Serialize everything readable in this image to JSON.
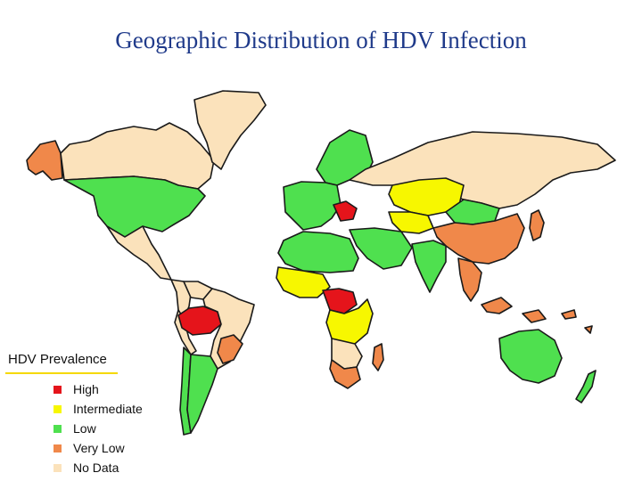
{
  "title": "Geographic Distribution of HDV Infection",
  "legend": {
    "title": "HDV Prevalence",
    "items": [
      {
        "key": "high",
        "label": "High",
        "color": "#e5141b"
      },
      {
        "key": "intermediate",
        "label": "Intermediate",
        "color": "#f7f700"
      },
      {
        "key": "low",
        "label": "Low",
        "color": "#4fe04f"
      },
      {
        "key": "very_low",
        "label": "Very Low",
        "color": "#f0884a"
      },
      {
        "key": "no_data",
        "label": "No Data",
        "color": "#fbe2bb"
      }
    ]
  },
  "regions": [
    {
      "name": "Alaska",
      "category": "very_low"
    },
    {
      "name": "Canada",
      "category": "no_data"
    },
    {
      "name": "Greenland",
      "category": "no_data"
    },
    {
      "name": "United States",
      "category": "low"
    },
    {
      "name": "Mexico",
      "category": "no_data"
    },
    {
      "name": "Colombia",
      "category": "no_data"
    },
    {
      "name": "Venezuela",
      "category": "no_data"
    },
    {
      "name": "Peru",
      "category": "no_data"
    },
    {
      "name": "Western Amazon Basin",
      "category": "high"
    },
    {
      "name": "Brazil",
      "category": "no_data"
    },
    {
      "name": "Eastern Brazil",
      "category": "very_low"
    },
    {
      "name": "Chile",
      "category": "low"
    },
    {
      "name": "Argentina",
      "category": "low"
    },
    {
      "name": "Northern Europe",
      "category": "low"
    },
    {
      "name": "Western Europe",
      "category": "low"
    },
    {
      "name": "Eastern Europe",
      "category": "high"
    },
    {
      "name": "Russia",
      "category": "no_data"
    },
    {
      "name": "Kazakhstan",
      "category": "intermediate"
    },
    {
      "name": "Central Asia",
      "category": "intermediate"
    },
    {
      "name": "Mongolia",
      "category": "low"
    },
    {
      "name": "China",
      "category": "very_low"
    },
    {
      "name": "Japan",
      "category": "very_low"
    },
    {
      "name": "Middle East",
      "category": "low"
    },
    {
      "name": "India",
      "category": "low"
    },
    {
      "name": "Southeast Asia",
      "category": "very_low"
    },
    {
      "name": "North Africa",
      "category": "low"
    },
    {
      "name": "West Africa",
      "category": "intermediate"
    },
    {
      "name": "Central Africa",
      "category": "high"
    },
    {
      "name": "East Africa",
      "category": "intermediate"
    },
    {
      "name": "Southern Africa",
      "category": "no_data"
    },
    {
      "name": "South Africa",
      "category": "very_low"
    },
    {
      "name": "Madagascar",
      "category": "very_low"
    },
    {
      "name": "Australia",
      "category": "low"
    },
    {
      "name": "New Zealand",
      "category": "low"
    },
    {
      "name": "Pacific Islands",
      "category": "very_low"
    }
  ]
}
